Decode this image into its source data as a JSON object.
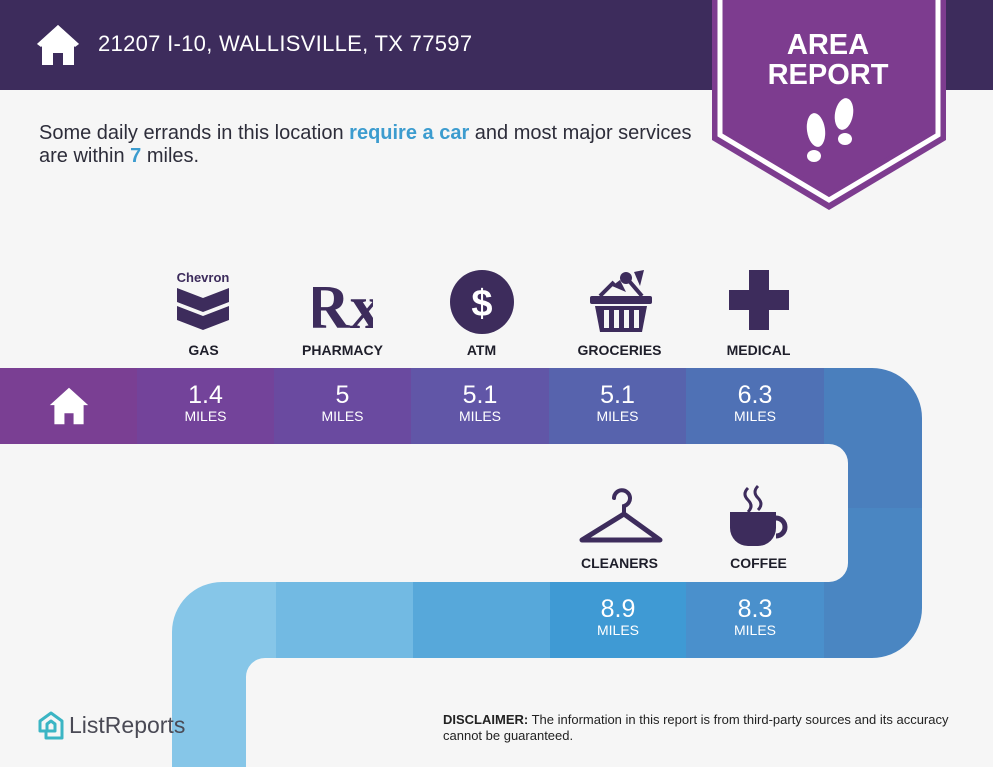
{
  "header": {
    "address": "21207 I-10, WALLISVILLE, TX 77597",
    "home_icon": "house-icon"
  },
  "badge": {
    "line1": "AREA",
    "line2": "REPORT",
    "icon": "footprints-icon"
  },
  "intro": {
    "part1": "Some daily errands in this location ",
    "highlight1": "require a car",
    "part2": " and most major services are within ",
    "highlight2": "7",
    "part3": " miles."
  },
  "services_top": [
    {
      "label": "GAS",
      "icon": "chevron-logo-icon",
      "icon_text": "Chevron",
      "value": "1.4",
      "unit": "MILES"
    },
    {
      "label": "PHARMACY",
      "icon": "rx-icon",
      "icon_text": "Rx",
      "value": "5",
      "unit": "MILES"
    },
    {
      "label": "ATM",
      "icon": "dollar-icon",
      "icon_text": "$",
      "value": "5.1",
      "unit": "MILES"
    },
    {
      "label": "GROCERIES",
      "icon": "grocery-basket-icon",
      "value": "5.1",
      "unit": "MILES"
    },
    {
      "label": "MEDICAL",
      "icon": "medical-cross-icon",
      "value": "6.3",
      "unit": "MILES"
    }
  ],
  "services_bottom": [
    {
      "label": "CLEANERS",
      "icon": "hanger-icon",
      "value": "8.9",
      "unit": "MILES"
    },
    {
      "label": "COFFEE",
      "icon": "coffee-cup-icon",
      "value": "8.3",
      "unit": "MILES"
    }
  ],
  "footer": {
    "logo_text": "ListReports",
    "disclaimer_label": "DISCLAIMER:",
    "disclaimer_text": " The information in this report is from third-party sources and its accuracy cannot be guaranteed."
  },
  "colors": {
    "header": "#3d2c5c",
    "badge": "#7d3c8f",
    "accent_text": "#3c9ccf",
    "icon_dark": "#3d2c5c"
  }
}
